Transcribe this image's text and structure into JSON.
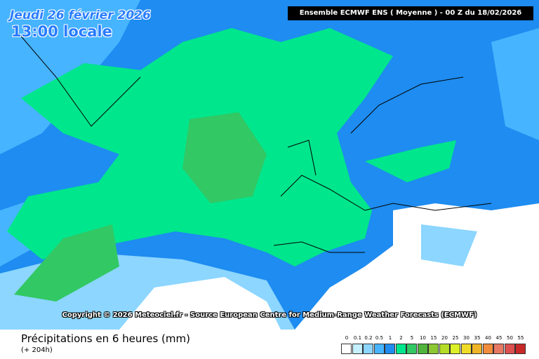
{
  "header": {
    "date": "Jeudi 26 février 2026",
    "time": "13:00 locale",
    "model": "Ensemble ECMWF ENS  ( Moyenne )  -  00 Z du 18/02/2026"
  },
  "copyright": "Copyright © 2026 Meteociel.fr - Source European Centre for Medium-Range Weather Forecasts (ECMWF)",
  "footer": {
    "title": "Précipitations en 6 heures (mm)",
    "subtitle": "(+ 204h)"
  },
  "legend": {
    "labels": [
      "0",
      "0.1",
      "0.2",
      "0.5",
      "1",
      "2",
      "5",
      "10",
      "15",
      "20",
      "25",
      "30",
      "35",
      "40",
      "45",
      "50",
      "55"
    ],
    "colors": [
      "#ffffff",
      "#c4f0ff",
      "#8cd6ff",
      "#46b4ff",
      "#1e8cf0",
      "#00e68c",
      "#32c864",
      "#50b43c",
      "#8cc832",
      "#b4dc28",
      "#dcf028",
      "#f0dc28",
      "#f0b428",
      "#f08c3c",
      "#e67864",
      "#dc5050",
      "#c82828"
    ]
  }
}
